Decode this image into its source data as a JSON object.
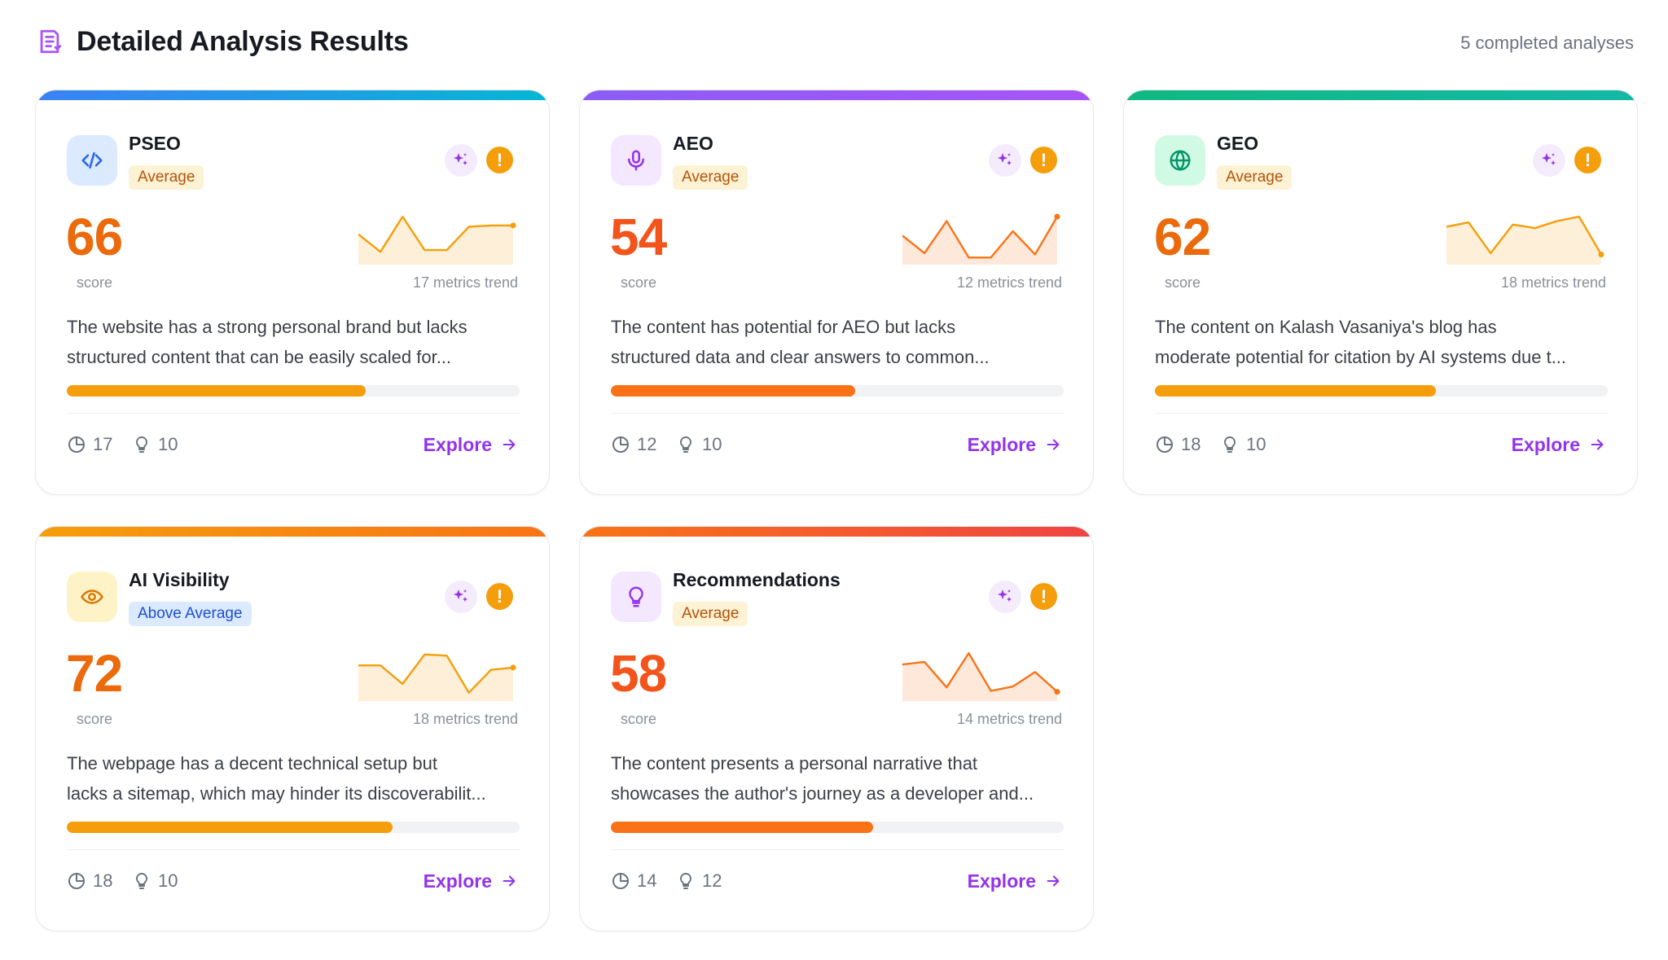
{
  "header": {
    "title": "Detailed Analysis Results",
    "count_label": "5 completed analyses",
    "icon": "document-list-icon"
  },
  "cards": [
    {
      "name": "PSEO",
      "icon": "code-icon",
      "badge": "Average",
      "score": "66",
      "score_label": "score",
      "trend_label": "17 metrics trend",
      "description_line1": "The website has a strong personal brand but lacks",
      "description_line2": "structured content that can be easily scaled for...",
      "progress": 0.66,
      "metrics": "17",
      "ideas": "10",
      "explore": "Explore",
      "colors": {
        "bar_from": "#3b82f6",
        "bar_to": "#06b6d4",
        "tile_bg": "#dbeafe",
        "icon": "#2563eb",
        "score": "#ea6a0c",
        "fill": "#f59e0b"
      },
      "trend": [
        0.58,
        0.18,
        0.98,
        0.22,
        0.22,
        0.75,
        0.78,
        0.78
      ]
    },
    {
      "name": "AEO",
      "icon": "microphone-icon",
      "badge": "Average",
      "score": "54",
      "score_label": "score",
      "trend_label": "12 metrics trend",
      "description_line1": "The content has potential for AEO but lacks",
      "description_line2": "structured data and clear answers to common...",
      "progress": 0.54,
      "metrics": "12",
      "ideas": "10",
      "explore": "Explore",
      "colors": {
        "bar_from": "#8b5cf6",
        "bar_to": "#a855f7",
        "tile_bg": "#f3e8ff",
        "icon": "#9333ea",
        "score": "#f2541b",
        "fill": "#f97316"
      },
      "trend": [
        0.55,
        0.15,
        0.88,
        0.05,
        0.05,
        0.65,
        0.12,
        0.98
      ]
    },
    {
      "name": "GEO",
      "icon": "globe-icon",
      "badge": "Average",
      "score": "62",
      "score_label": "score",
      "trend_label": "18 metrics trend",
      "description_line1": "The content on Kalash Vasaniya's blog has",
      "description_line2": "moderate potential for citation by AI systems due t...",
      "progress": 0.62,
      "metrics": "18",
      "ideas": "10",
      "explore": "Explore",
      "colors": {
        "bar_from": "#10b981",
        "bar_to": "#14b8a6",
        "tile_bg": "#d1fae5",
        "icon": "#059669",
        "score": "#ea6a0c",
        "fill": "#f59e0b"
      },
      "trend": [
        0.75,
        0.85,
        0.15,
        0.8,
        0.72,
        0.88,
        0.98,
        0.12
      ]
    },
    {
      "name": "AI Visibility",
      "icon": "eye-icon",
      "badge": "Above Average",
      "badge_kind": "above",
      "score": "72",
      "score_label": "score",
      "trend_label": "18 metrics trend",
      "description_line1": "The webpage has a decent technical setup but",
      "description_line2": "lacks a sitemap, which may hinder its discoverabilit...",
      "progress": 0.72,
      "metrics": "18",
      "ideas": "10",
      "explore": "Explore",
      "colors": {
        "bar_from": "#f59e0b",
        "bar_to": "#f97316",
        "tile_bg": "#fef3c7",
        "icon": "#d97706",
        "score": "#ea6a0c",
        "fill": "#f59e0b"
      },
      "trend": [
        0.7,
        0.7,
        0.28,
        0.95,
        0.92,
        0.08,
        0.6,
        0.65
      ]
    },
    {
      "name": "Recommendations",
      "icon": "lightbulb-icon",
      "badge": "Average",
      "score": "58",
      "score_label": "score",
      "trend_label": "14 metrics trend",
      "description_line1": "The content presents a personal narrative that",
      "description_line2": "showcases the author's journey as a developer and...",
      "progress": 0.58,
      "metrics": "14",
      "ideas": "12",
      "explore": "Explore",
      "colors": {
        "bar_from": "#f97316",
        "bar_to": "#ef4444",
        "tile_bg": "#f3e8ff",
        "icon": "#9333ea",
        "score": "#f2541b",
        "fill": "#f97316"
      },
      "trend": [
        0.72,
        0.78,
        0.2,
        0.98,
        0.12,
        0.22,
        0.55,
        0.1
      ]
    }
  ]
}
